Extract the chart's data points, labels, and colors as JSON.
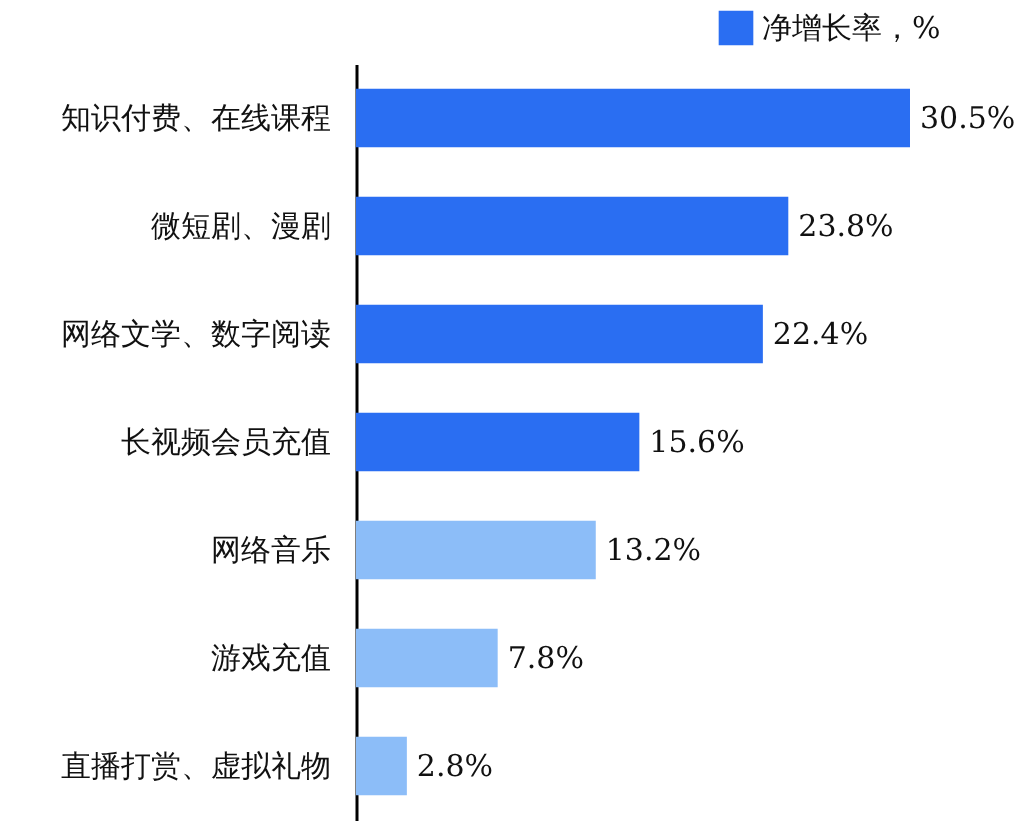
{
  "chart_data": {
    "type": "bar",
    "orientation": "horizontal",
    "legend": "top right",
    "categories": [
      "知识付费、在线课程",
      "微短剧、漫剧",
      "网络文学、数字阅读",
      "长视频会员充值",
      "网络音乐",
      "游戏充值",
      "直播打赏、虚拟礼物"
    ],
    "series": [
      {
        "name": "净增长率，%",
        "color": "#2a6ef2",
        "colors": [
          "#2a6ef2",
          "#2a6ef2",
          "#2a6ef2",
          "#2a6ef2",
          "#8cbdf8",
          "#8cbdf8",
          "#8cbdf8"
        ],
        "values": [
          30.5,
          23.8,
          22.4,
          15.6,
          13.2,
          7.8,
          2.8
        ],
        "value_labels": [
          "30.5%",
          "23.8%",
          "22.4%",
          "15.6%",
          "13.2%",
          "7.8%",
          "2.8%"
        ]
      }
    ]
  }
}
